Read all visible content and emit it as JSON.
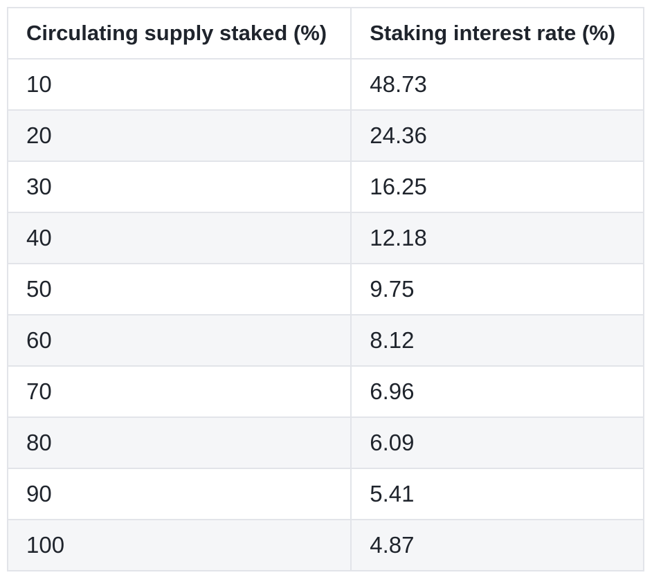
{
  "colors": {
    "text": "#1f242c",
    "border": "#e2e4e9",
    "stripe": "#f5f6f8",
    "background": "#ffffff"
  },
  "chart_data": {
    "type": "table",
    "title": "",
    "columns": [
      "Circulating supply staked (%)",
      "Staking interest rate (%)"
    ],
    "column_keys": [
      "supply-staked",
      "interest-rate"
    ],
    "rows": [
      [
        "10",
        "48.73"
      ],
      [
        "20",
        "24.36"
      ],
      [
        "30",
        "16.25"
      ],
      [
        "40",
        "12.18"
      ],
      [
        "50",
        "9.75"
      ],
      [
        "60",
        "8.12"
      ],
      [
        "70",
        "6.96"
      ],
      [
        "80",
        "6.09"
      ],
      [
        "90",
        "5.41"
      ],
      [
        "100",
        "4.87"
      ]
    ],
    "x_series": [
      10,
      20,
      30,
      40,
      50,
      60,
      70,
      80,
      90,
      100
    ],
    "y_series": [
      48.73,
      24.36,
      16.25,
      12.18,
      9.75,
      8.12,
      6.96,
      6.09,
      5.41,
      4.87
    ],
    "layout": {
      "striped_rows": true,
      "stripe_on": "even",
      "header_bold": true,
      "grid": true
    }
  }
}
